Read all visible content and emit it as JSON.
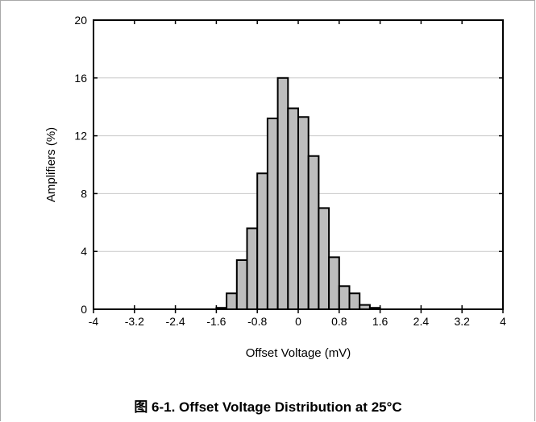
{
  "caption": "图 6-1. Offset Voltage Distribution at 25°C",
  "colors": {
    "bar_fill": "#bdbdbd",
    "bar_stroke": "#000000",
    "grid": "#c8c8c8",
    "frame": "#a8a8a8"
  },
  "chart_data": {
    "type": "bar",
    "title": "",
    "xlabel": "Offset Voltage (mV)",
    "ylabel": "Amplifiers (%)",
    "xlim": [
      -4,
      4
    ],
    "ylim": [
      0,
      20
    ],
    "x_ticks": [
      "-4",
      "-3.2",
      "-2.4",
      "-1.6",
      "-0.8",
      "0",
      "0.8",
      "1.6",
      "2.4",
      "3.2",
      "4"
    ],
    "y_ticks": [
      "0",
      "4",
      "8",
      "12",
      "16",
      "20"
    ],
    "grid": "horizontal",
    "bin_width_mv": 0.2,
    "bins": [
      {
        "x0": -1.6,
        "x1": -1.4,
        "value": 0.1
      },
      {
        "x0": -1.4,
        "x1": -1.2,
        "value": 1.1
      },
      {
        "x0": -1.2,
        "x1": -1.0,
        "value": 3.4
      },
      {
        "x0": -1.0,
        "x1": -0.8,
        "value": 5.6
      },
      {
        "x0": -0.8,
        "x1": -0.6,
        "value": 9.4
      },
      {
        "x0": -0.6,
        "x1": -0.4,
        "value": 13.2
      },
      {
        "x0": -0.4,
        "x1": -0.2,
        "value": 16.0
      },
      {
        "x0": -0.2,
        "x1": 0.0,
        "value": 13.9
      },
      {
        "x0": 0.0,
        "x1": 0.2,
        "value": 13.3
      },
      {
        "x0": 0.2,
        "x1": 0.4,
        "value": 10.6
      },
      {
        "x0": 0.4,
        "x1": 0.6,
        "value": 7.0
      },
      {
        "x0": 0.6,
        "x1": 0.8,
        "value": 3.6
      },
      {
        "x0": 0.8,
        "x1": 1.0,
        "value": 1.6
      },
      {
        "x0": 1.0,
        "x1": 1.2,
        "value": 1.1
      },
      {
        "x0": 1.2,
        "x1": 1.4,
        "value": 0.3
      },
      {
        "x0": 1.4,
        "x1": 1.6,
        "value": 0.1
      }
    ]
  }
}
